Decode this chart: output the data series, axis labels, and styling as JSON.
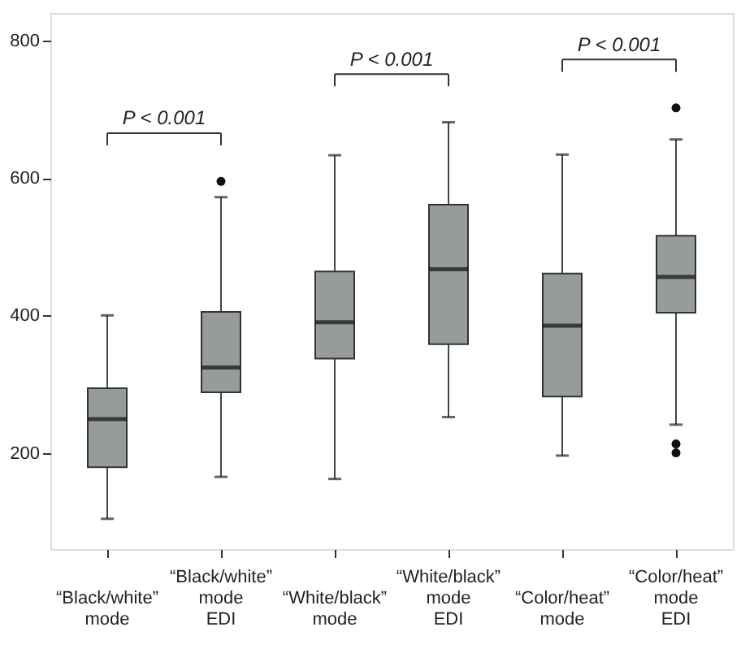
{
  "chart_data": {
    "type": "box",
    "categories": [
      "“Black/white” mode",
      "“Black/white” mode EDI",
      "“White/black” mode",
      "“White/black” mode EDI",
      "“Color/heat” mode",
      "“Color/heat” mode EDI"
    ],
    "boxes": [
      {
        "low": 104,
        "q1": 179,
        "median": 249,
        "q3": 294,
        "high": 400
      },
      {
        "low": 165,
        "q1": 288,
        "median": 324,
        "q3": 405,
        "high": 572,
        "outliers": [
          595
        ]
      },
      {
        "low": 162,
        "q1": 337,
        "median": 390,
        "q3": 464,
        "high": 633
      },
      {
        "low": 252,
        "q1": 358,
        "median": 467,
        "q3": 561,
        "high": 681
      },
      {
        "low": 196,
        "q1": 282,
        "median": 385,
        "q3": 461,
        "high": 634
      },
      {
        "low": 241,
        "q1": 404,
        "median": 456,
        "q3": 516,
        "high": 656,
        "outliers": [
          702,
          213,
          200
        ]
      }
    ],
    "color": "#959c9a",
    "ylim": [
      60,
      840
    ],
    "yticks": [
      200,
      400,
      600,
      800
    ],
    "grid": false,
    "annotations": [
      "P < 0.001",
      "P < 0.001",
      "P < 0.001"
    ]
  }
}
